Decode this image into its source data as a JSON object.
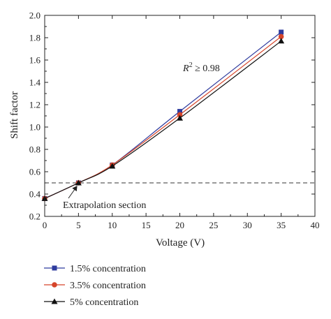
{
  "chart_data": {
    "type": "line",
    "title": "",
    "xlabel": "Voltage (V)",
    "ylabel": "Shift factor",
    "xlim": [
      0,
      40
    ],
    "ylim": [
      0.2,
      2.0
    ],
    "xticks": [
      0,
      5,
      10,
      15,
      20,
      25,
      30,
      35,
      40
    ],
    "yticks": [
      0.2,
      0.4,
      0.6,
      0.8,
      1.0,
      1.2,
      1.4,
      1.6,
      1.8,
      2.0
    ],
    "ytick_labels": [
      "0.2",
      "0.4",
      "0.6",
      "0.8",
      "1.0",
      "1.2",
      "1.4",
      "1.6",
      "1.8",
      "2.0"
    ],
    "grid": false,
    "legend_position": "bottom-left (below plot)",
    "x": [
      0,
      5,
      10,
      20,
      35
    ],
    "series": [
      {
        "name": "1.5% concentration",
        "values": [
          0.36,
          0.5,
          0.66,
          1.14,
          1.85
        ],
        "color": "#2e3b9e",
        "marker": "square"
      },
      {
        "name": "3.5% concentration",
        "values": [
          0.36,
          0.5,
          0.66,
          1.11,
          1.81
        ],
        "color": "#d6452a",
        "marker": "circle"
      },
      {
        "name": "5% concentration",
        "values": [
          0.36,
          0.5,
          0.65,
          1.08,
          1.77
        ],
        "color": "#111111",
        "marker": "triangle"
      }
    ],
    "reference_line": {
      "y": 0.5,
      "style": "dashed",
      "color": "#333333"
    },
    "annotations": {
      "r2_prefix": "R",
      "r2_superscript": "2",
      "r2_suffix": " ≥ 0.98",
      "extrapolation": "Extrapolation section",
      "extrapolation_target": {
        "x": 5,
        "y": 0.5
      }
    }
  }
}
